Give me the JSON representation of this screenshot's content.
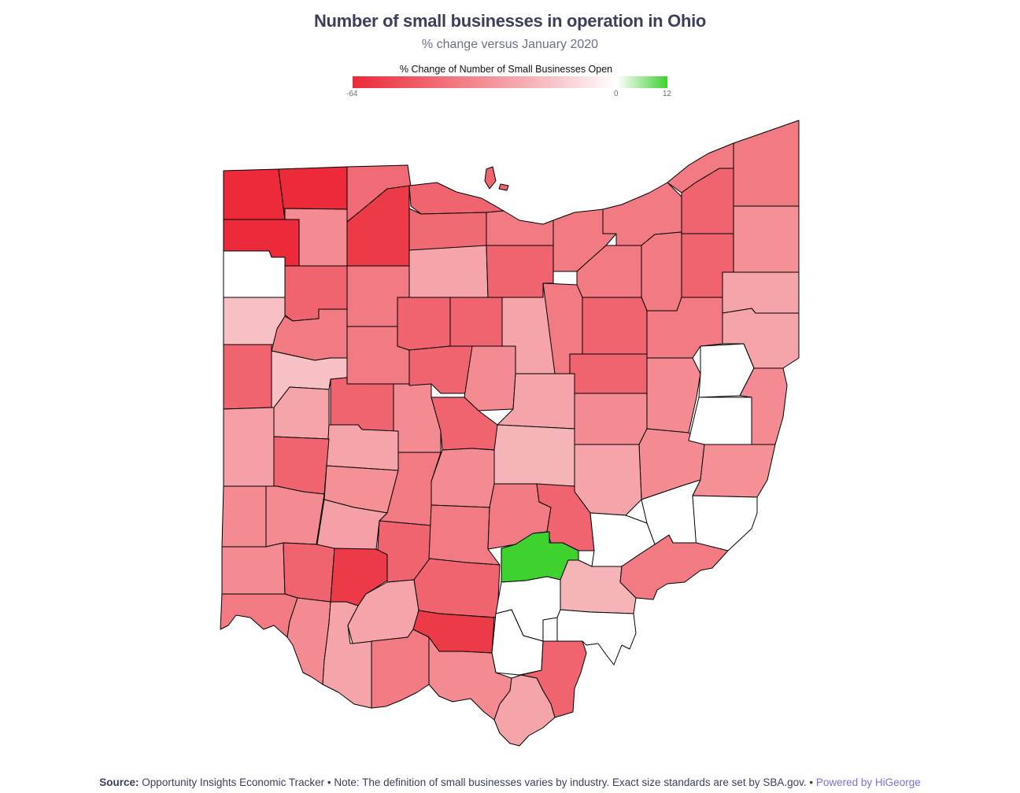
{
  "title": "Number of small businesses in operation in Ohio",
  "subtitle": "% change versus January 2020",
  "legend": {
    "title": "% Change of Number of Small Businesses Open",
    "min_label": "-64",
    "zero_label": "0",
    "max_label": "12",
    "min": -64,
    "max": 12,
    "colors": {
      "most_negative": "#ec2a39",
      "zero": "#ffffff",
      "most_positive": "#3fd12e",
      "no_data": "#ffffff"
    }
  },
  "footer": {
    "source_label": "Source:",
    "source_text": " Opportunity Insights Economic Tracker • Note: The definition of small businesses varies by industry. Exact size standards are set by SBA.gov. • ",
    "powered_by": "Powered by HiGeorge"
  },
  "chart_data": {
    "type": "choropleth",
    "region": "Ohio counties",
    "metric": "% change of number of small businesses open vs January 2020",
    "scale": {
      "min": -64,
      "mid": 0,
      "max": 12
    }
  }
}
